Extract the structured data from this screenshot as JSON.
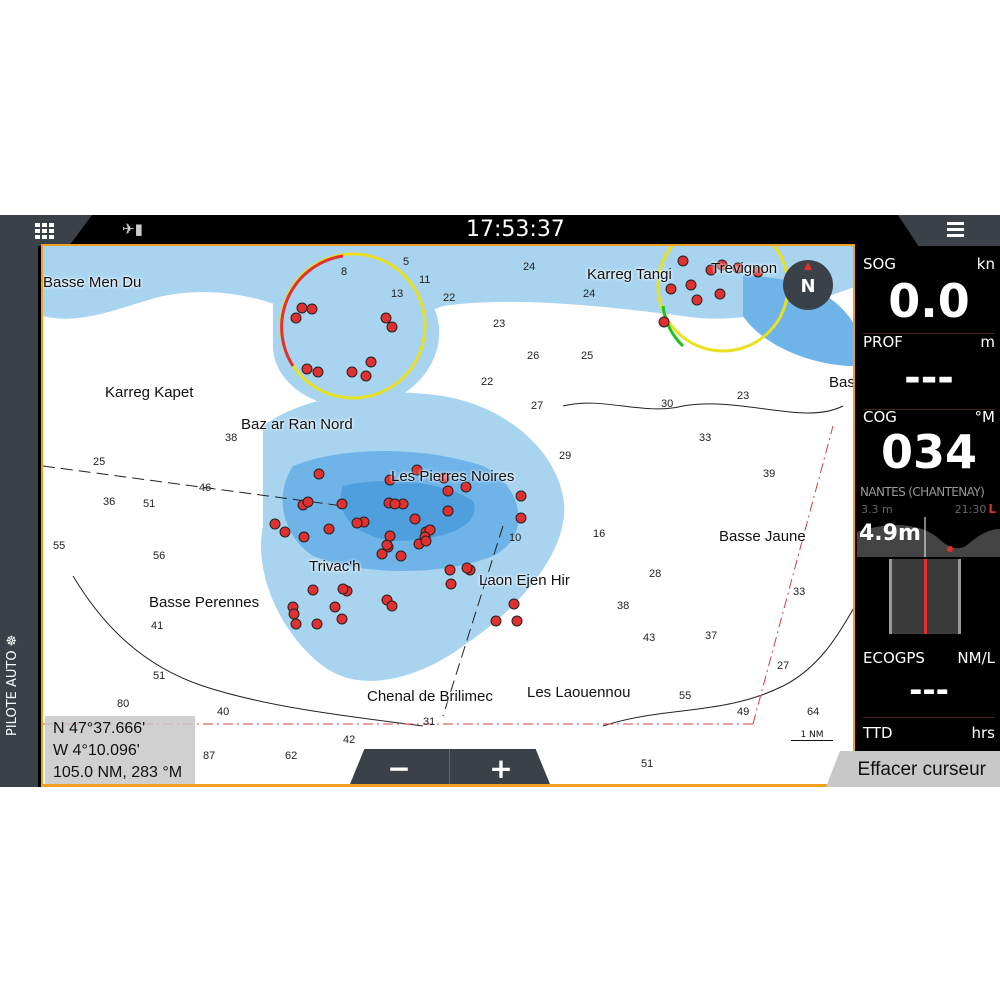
{
  "topbar": {
    "clock": "17:53:37",
    "grid_icon": "apps-grid-icon",
    "gps_icon": "satellite-signal-icon",
    "menu_icon": "hamburger-menu-icon"
  },
  "leftbar": {
    "autopilot_label": "PILOTE AUTO ☸"
  },
  "map": {
    "compass_label": "N",
    "place_labels": [
      "Basse Men Du",
      "Karreg Kapet",
      "Baz ar Ran Nord",
      "Karreg Tangi",
      "Trevignon",
      "Bas",
      "Les Pierres Noires",
      "Basse Jaune",
      "Trivac'h",
      "Laon Ejen Hir",
      "Basse Perennes",
      "Chenal de Brilimec",
      "Les Laouennou"
    ],
    "depths": [
      "8",
      "13",
      "22",
      "24",
      "24",
      "23",
      "26",
      "25",
      "22",
      "27",
      "30",
      "23",
      "33",
      "29",
      "38",
      "25",
      "46",
      "51",
      "55",
      "56",
      "39",
      "16",
      "28",
      "38",
      "33",
      "43",
      "37",
      "41",
      "51",
      "55",
      "27",
      "40",
      "31",
      "49",
      "64",
      "87",
      "62",
      "42",
      "80",
      "51",
      "36",
      "11",
      "5",
      "10"
    ],
    "scale_label": "1 NM",
    "cursor": {
      "lat": "N  47°37.666'",
      "lon": "W  4°10.096'",
      "range_bearing": "105.0 NM, 283 °M"
    },
    "zoom_out": "−",
    "zoom_in": "+"
  },
  "panel": {
    "sog": {
      "label": "SOG",
      "unit": "kn",
      "value": "0.0"
    },
    "depth": {
      "label": "PROF",
      "unit": "m",
      "value": "---"
    },
    "cog": {
      "label": "COG",
      "unit": "°M",
      "value": "034"
    },
    "tide": {
      "station": "NANTES (CHANTENAY)",
      "low": "3.3 m",
      "time": "21:30",
      "flag": "L",
      "current": "4.9m"
    },
    "eco": {
      "label": "ECOGPS",
      "unit": "NM/L",
      "value": "---"
    },
    "ttd": {
      "label": "TTD",
      "unit": "hrs"
    }
  },
  "clear_cursor": "Effacer curseur",
  "colors": {
    "shallow": "#a8d4f0",
    "medium": "#6fb4e8",
    "deep": "#3a8fd6",
    "border": "#f0a020",
    "alert": "#e03030",
    "panel_bg": "#000000",
    "button_bg": "#3a4148"
  }
}
